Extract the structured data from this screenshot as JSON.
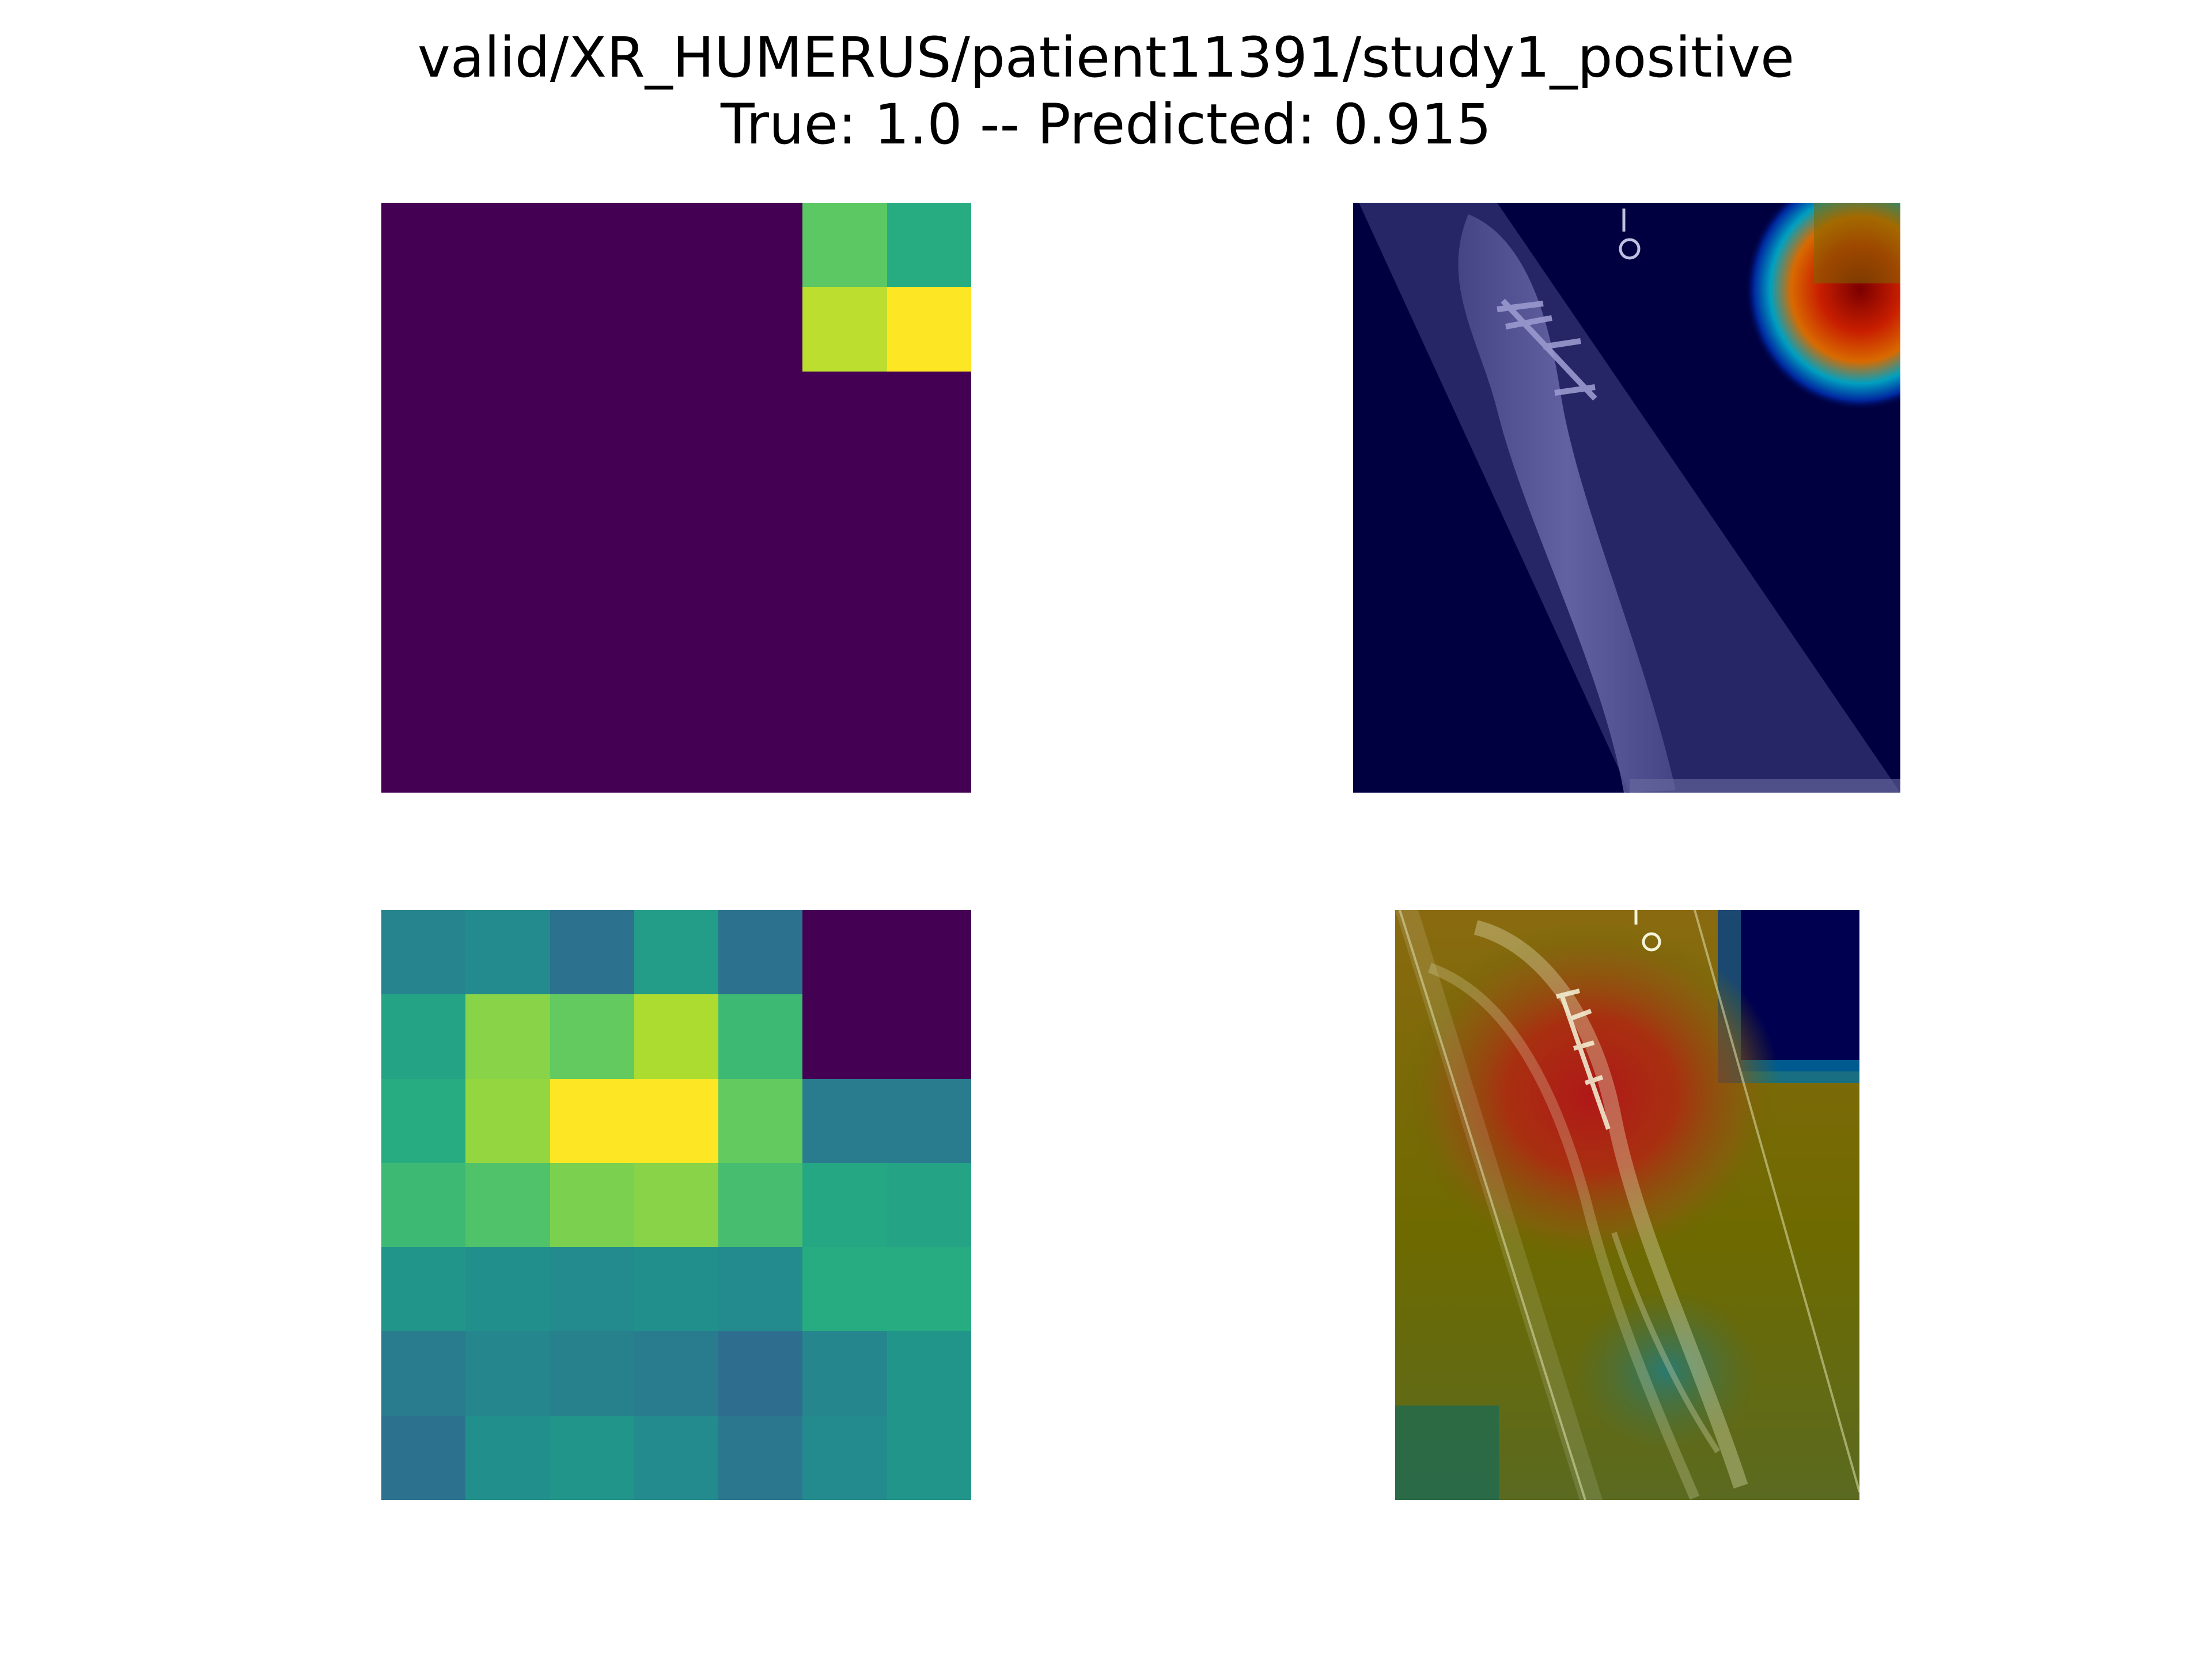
{
  "title_line1": "valid/XR_HUMERUS/patient11391/study1_positive",
  "title_line2": "True: 1.0 -- Predicted: 0.915",
  "chart_data": [
    {
      "type": "heatmap",
      "panel": "top-left",
      "colormap": "viridis",
      "rows": 7,
      "cols": 7,
      "values": [
        [
          0,
          0,
          0,
          0,
          0,
          0.75,
          0.62
        ],
        [
          0,
          0,
          0,
          0,
          0,
          0.9,
          1.0
        ],
        [
          0,
          0,
          0,
          0,
          0,
          0,
          0
        ],
        [
          0,
          0,
          0,
          0,
          0,
          0,
          0
        ],
        [
          0,
          0,
          0,
          0,
          0,
          0,
          0
        ],
        [
          0,
          0,
          0,
          0,
          0,
          0,
          0
        ],
        [
          0,
          0,
          0,
          0,
          0,
          0,
          0
        ]
      ]
    },
    {
      "type": "image-overlay",
      "panel": "top-right",
      "description": "X-ray with heatmap overlay",
      "overlay_colormap": "jet",
      "background_color": "#000040"
    },
    {
      "type": "heatmap",
      "panel": "bottom-left",
      "colormap": "viridis",
      "rows": 7,
      "cols": 7,
      "values": [
        [
          0.45,
          0.48,
          0.38,
          0.55,
          0.38,
          0,
          0
        ],
        [
          0.58,
          0.82,
          0.76,
          0.88,
          0.68,
          0,
          0
        ],
        [
          0.62,
          0.84,
          1.0,
          1.0,
          0.76,
          0.42,
          0.42
        ],
        [
          0.68,
          0.72,
          0.8,
          0.82,
          0.7,
          0.6,
          0.58
        ],
        [
          0.52,
          0.5,
          0.48,
          0.5,
          0.48,
          0.62,
          0.62
        ],
        [
          0.42,
          0.46,
          0.44,
          0.42,
          0.36,
          0.46,
          0.52
        ],
        [
          0.38,
          0.5,
          0.52,
          0.48,
          0.4,
          0.48,
          0.52
        ]
      ]
    },
    {
      "type": "image-overlay",
      "panel": "bottom-right",
      "description": "X-ray with heatmap overlay",
      "overlay_colormap": "jet"
    }
  ]
}
